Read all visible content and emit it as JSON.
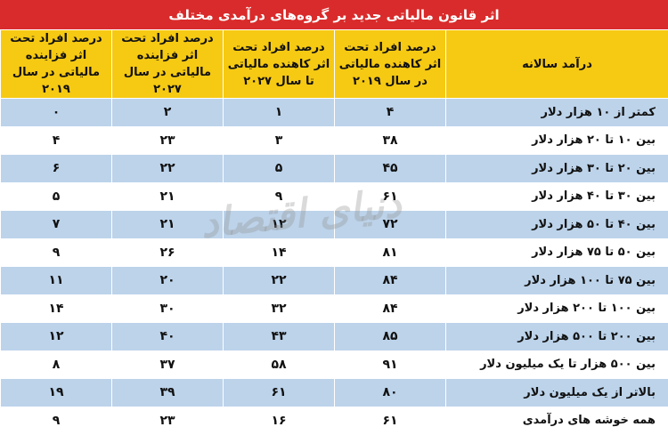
{
  "title": "اثر قانون مالیاتی جدید بر گروه‌های درآمدی مختلف",
  "headers": [
    "درآمد سالانه",
    "درصد افراد تحت اثر کاهنده مالیاتی در سال ۲۰۱۹",
    "درصد افراد تحت اثر کاهنده مالیاتی تا سال ۲۰۲۷",
    "درصد افراد تحت اثر فزاینده مالیاتی در سال ۲۰۲۷",
    "درصد افراد تحت اثر فزاینده مالیاتی در سال ۲۰۱۹"
  ],
  "rows": [
    [
      "کمتر از ۱۰ هزار دلار",
      "۴",
      "۱",
      "۲",
      "۰"
    ],
    [
      "بین ۱۰ تا ۲۰ هزار دلار",
      "۳۸",
      "۳",
      "۲۳",
      "۴"
    ],
    [
      "بین ۲۰ تا ۳۰ هزار دلار",
      "۴۵",
      "۵",
      "۲۲",
      "۶"
    ],
    [
      "بین ۳۰ تا ۴۰ هزار دلار",
      "۶۱",
      "۹",
      "۲۱",
      "۵"
    ],
    [
      "بین ۴۰ تا ۵۰ هزار دلار",
      "۷۲",
      "۱۲",
      "۲۱",
      "۷"
    ],
    [
      "بین ۵۰ تا ۷۵ هزار دلار",
      "۸۱",
      "۱۴",
      "۲۶",
      "۹"
    ],
    [
      "بین ۷۵ تا ۱۰۰ هزار دلار",
      "۸۴",
      "۲۲",
      "۲۰",
      "۱۱"
    ],
    [
      "بین ۱۰۰ تا ۲۰۰ هزار دلار",
      "۸۴",
      "۳۲",
      "۳۰",
      "۱۴"
    ],
    [
      "بین ۲۰۰ تا ۵۰۰ هزار دلار",
      "۸۵",
      "۴۳",
      "۴۰",
      "۱۲"
    ],
    [
      "بین ۵۰۰ هزار تا یک میلیون دلار",
      "۹۱",
      "۵۸",
      "۳۷",
      "۸"
    ],
    [
      "بالاتر از یک میلیون دلار",
      "۸۰",
      "۶۱",
      "۳۹",
      "۱۹"
    ],
    [
      "همه خوشه های درآمدی",
      "۶۱",
      "۱۶",
      "۲۳",
      "۹"
    ]
  ],
  "watermark": "دنیای اقتصاد",
  "colors": {
    "title_bg": "#d92b2b",
    "header_bg": "#f6c913",
    "row_odd_bg": "#bcd3ea",
    "row_even_bg": "#ffffff"
  }
}
